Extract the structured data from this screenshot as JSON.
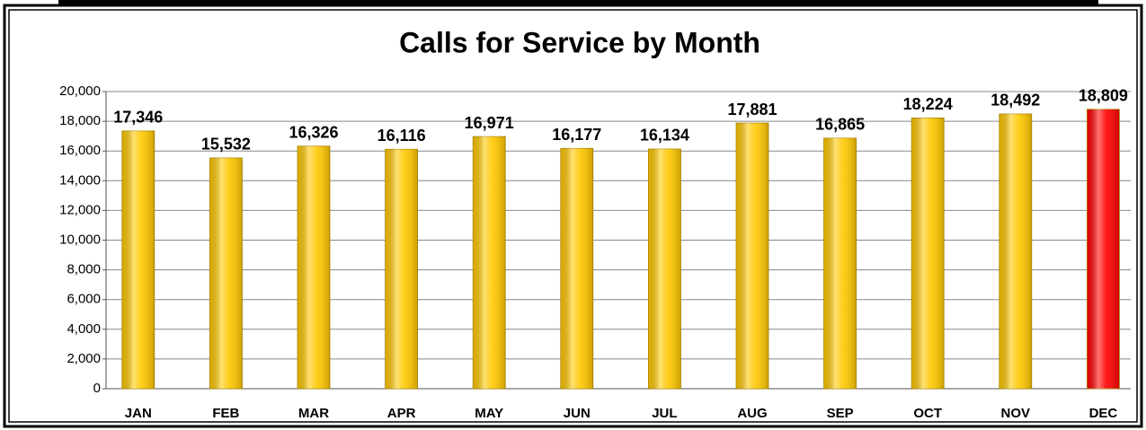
{
  "chart_data": {
    "type": "bar",
    "title": "Calls for Service by Month",
    "categories": [
      "JAN",
      "FEB",
      "MAR",
      "APR",
      "MAY",
      "JUN",
      "JUL",
      "AUG",
      "SEP",
      "OCT",
      "NOV",
      "DEC"
    ],
    "values": [
      17346,
      15532,
      16326,
      16116,
      16971,
      16177,
      16134,
      17881,
      16865,
      18224,
      18492,
      18809
    ],
    "value_labels": [
      "17,346",
      "15,532",
      "16,326",
      "16,116",
      "16,971",
      "16,177",
      "16,134",
      "17,881",
      "16,865",
      "18,224",
      "18,492",
      "18,809"
    ],
    "colors": [
      "#ffc800",
      "#ffc800",
      "#ffc800",
      "#ffc800",
      "#ffc800",
      "#ffc800",
      "#ffc800",
      "#ffc800",
      "#ffc800",
      "#ffc800",
      "#ffc800",
      "#ff0000"
    ],
    "ylim": [
      0,
      20000
    ],
    "yticks": [
      0,
      {
        "value": 2000,
        "label": "2,000"
      },
      {
        "value": 4000,
        "label": "4,000"
      },
      {
        "value": 6000,
        "label": "6,000"
      },
      {
        "value": 8000,
        "label": "8,000"
      },
      {
        "value": 10000,
        "label": "10,000"
      },
      {
        "value": 12000,
        "label": "12,000"
      },
      {
        "value": 14000,
        "label": "14,000"
      },
      {
        "value": 16000,
        "label": "16,000"
      },
      {
        "value": 18000,
        "label": "18,000"
      },
      {
        "value": 20000,
        "label": "20,000"
      }
    ],
    "grid": true
  }
}
